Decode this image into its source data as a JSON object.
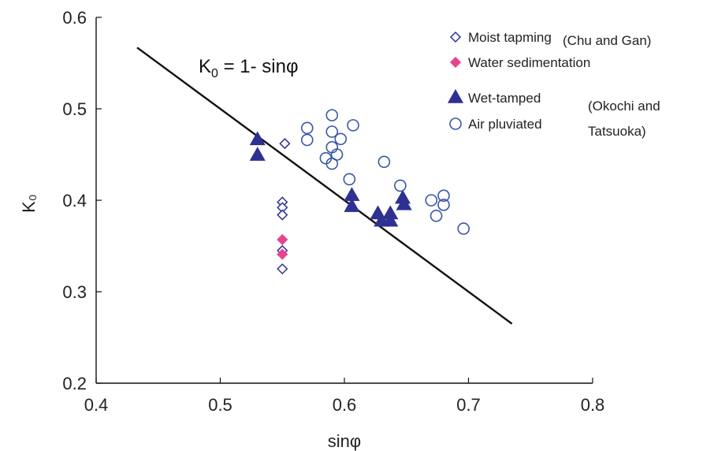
{
  "chart_data": {
    "type": "scatter",
    "xlabel": "sinφ",
    "ylabel": "K₀",
    "xlim": [
      0.4,
      0.8
    ],
    "ylim": [
      0.2,
      0.6
    ],
    "xticks": [
      "0.4",
      "0.5",
      "0.6",
      "0.7",
      "0.8"
    ],
    "yticks": [
      "0.2",
      "0.3",
      "0.4",
      "0.5",
      "0.6"
    ],
    "grid": false,
    "legend_position": "top-right",
    "annotation": {
      "base": "K",
      "sub": "0",
      "rest": " = 1- sinφ"
    },
    "line": {
      "x": [
        0.433,
        0.735
      ],
      "y": [
        0.567,
        0.265
      ]
    },
    "legend_groups": [
      {
        "label": "(Chu and Gan)",
        "row": 0
      },
      {
        "label": "(Okochi and",
        "row": 2
      },
      {
        "label": "Tatsuoka)",
        "row": 3
      }
    ],
    "series": [
      {
        "name": "Moist tapming",
        "marker": "diamond-open",
        "color": "#2e3192",
        "x": [
          0.552,
          0.55,
          0.55,
          0.55,
          0.55,
          0.55
        ],
        "y": [
          0.462,
          0.398,
          0.392,
          0.384,
          0.345,
          0.325
        ]
      },
      {
        "name": "Water sedimentation",
        "marker": "diamond-filled",
        "color": "#e8438e",
        "x": [
          0.55,
          0.55
        ],
        "y": [
          0.357,
          0.341
        ]
      },
      {
        "name": "Wet-tamped",
        "marker": "triangle-filled",
        "color": "#2e3192",
        "x": [
          0.53,
          0.53,
          0.606,
          0.606,
          0.627,
          0.63,
          0.637,
          0.637,
          0.647,
          0.648
        ],
        "y": [
          0.466,
          0.449,
          0.405,
          0.393,
          0.385,
          0.377,
          0.385,
          0.377,
          0.402,
          0.395
        ]
      },
      {
        "name": "Air pluviated",
        "marker": "circle-open",
        "color": "#3a57a7",
        "x": [
          0.59,
          0.57,
          0.607,
          0.57,
          0.59,
          0.597,
          0.59,
          0.594,
          0.585,
          0.59,
          0.604,
          0.632,
          0.645,
          0.67,
          0.68,
          0.68,
          0.674,
          0.696
        ],
        "y": [
          0.493,
          0.479,
          0.482,
          0.466,
          0.475,
          0.467,
          0.458,
          0.45,
          0.446,
          0.44,
          0.423,
          0.442,
          0.416,
          0.4,
          0.405,
          0.395,
          0.383,
          0.369
        ]
      }
    ]
  }
}
